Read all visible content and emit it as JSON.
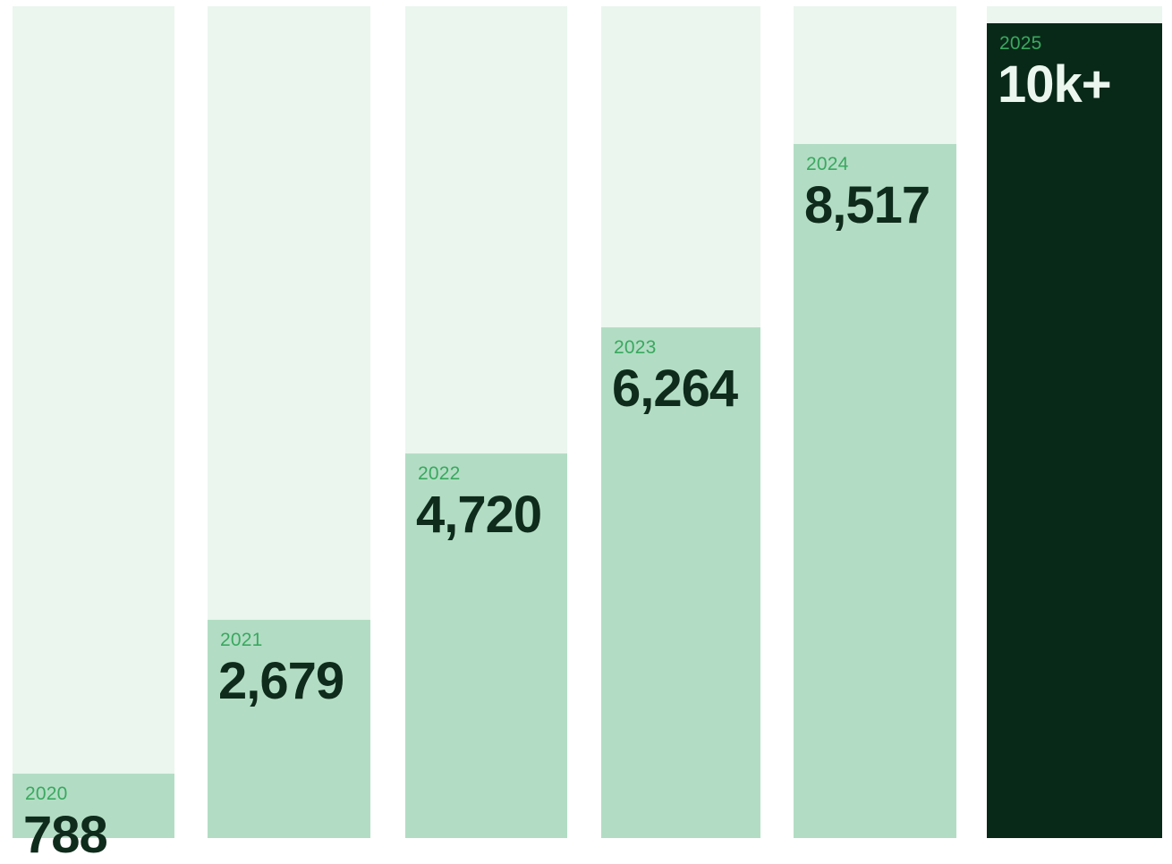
{
  "chart_data": {
    "type": "bar",
    "title": "",
    "xlabel": "",
    "ylabel": "",
    "ylim": [
      0,
      10000
    ],
    "grid": false,
    "legend": "none",
    "bars": [
      {
        "year": "2020",
        "value": 788,
        "label": "788"
      },
      {
        "year": "2021",
        "value": 2679,
        "label": "2,679"
      },
      {
        "year": "2022",
        "value": 4720,
        "label": "4,720"
      },
      {
        "year": "2023",
        "value": 6264,
        "label": "6,264"
      },
      {
        "year": "2024",
        "value": 8517,
        "label": "8,517"
      },
      {
        "year": "2025",
        "value": 10000,
        "label": "10k+",
        "highlight": true
      }
    ]
  },
  "colors": {
    "track": "#eaf6ee",
    "bar": "#b2ddc4",
    "bar_highlight": "#092918",
    "year_text": "#3aa85f",
    "value_text": "#0f2b1b",
    "value_text_highlight": "#eaf6ee"
  }
}
